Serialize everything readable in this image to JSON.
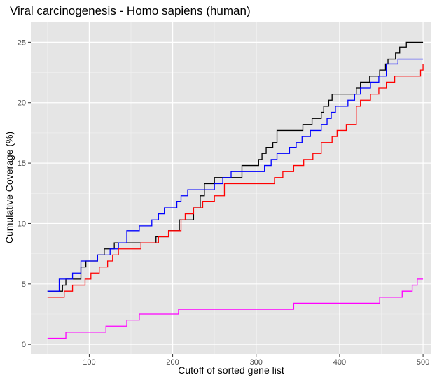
{
  "chart_data": {
    "type": "line",
    "title": "Viral carcinogenesis - Homo sapiens (human)",
    "xlabel": "Cutoff of sorted gene list",
    "ylabel": "Cumulative Coverage (%)",
    "xlim": [
      30,
      510
    ],
    "ylim": [
      -0.8,
      26.7
    ],
    "xticks": [
      100,
      200,
      300,
      400,
      500
    ],
    "yticks": [
      0,
      5,
      10,
      15,
      20,
      25
    ],
    "xtick_labels": [
      "100",
      "200",
      "300",
      "400",
      "500"
    ],
    "ytick_labels": [
      "0",
      "5",
      "10",
      "15",
      "20",
      "25"
    ],
    "grid": true,
    "legend": "none",
    "line_shape": "step",
    "series": [
      {
        "color": "#000000",
        "x": [
          50,
          65,
          68,
          72,
          78,
          90,
          96,
          110,
          118,
          130,
          145,
          160,
          180,
          195,
          208,
          215,
          225,
          233,
          238,
          250,
          265,
          283,
          300,
          303,
          307,
          312,
          320,
          325,
          340,
          350,
          356,
          367,
          376,
          378,
          381,
          387,
          391,
          397,
          412,
          420,
          425,
          436,
          448,
          455,
          458,
          467,
          472,
          480,
          500
        ],
        "y": [
          4.4,
          4.4,
          4.9,
          5.4,
          5.4,
          6.4,
          6.9,
          7.4,
          7.9,
          8.4,
          8.4,
          8.4,
          8.9,
          9.4,
          10.3,
          10.3,
          11.3,
          12.3,
          13.3,
          13.8,
          13.8,
          14.8,
          14.8,
          15.3,
          15.8,
          16.3,
          16.7,
          17.7,
          17.7,
          17.7,
          18.2,
          18.7,
          18.7,
          19.2,
          19.7,
          20.2,
          20.7,
          20.7,
          20.7,
          21.2,
          21.7,
          22.2,
          22.7,
          23.2,
          23.6,
          24.1,
          24.6,
          25.0,
          25.0
        ]
      },
      {
        "color": "#0000ff",
        "x": [
          50,
          64,
          80,
          90,
          100,
          110,
          125,
          135,
          145,
          160,
          175,
          183,
          190,
          205,
          210,
          218,
          225,
          240,
          250,
          260,
          270,
          300,
          310,
          318,
          325,
          333,
          340,
          348,
          355,
          365,
          378,
          385,
          390,
          395,
          410,
          418,
          425,
          437,
          447,
          456,
          470,
          476,
          500
        ],
        "y": [
          4.4,
          5.4,
          5.9,
          6.9,
          6.9,
          7.4,
          7.9,
          8.4,
          9.4,
          9.8,
          10.3,
          10.8,
          11.3,
          11.8,
          12.3,
          12.8,
          12.8,
          12.8,
          13.3,
          13.8,
          14.3,
          14.3,
          14.8,
          15.3,
          15.8,
          15.8,
          16.3,
          16.7,
          17.2,
          17.7,
          18.2,
          18.7,
          19.2,
          19.7,
          20.2,
          20.7,
          21.2,
          21.7,
          22.2,
          23.2,
          23.6,
          23.6,
          23.6
        ]
      },
      {
        "color": "#ff0000",
        "x": [
          50,
          60,
          70,
          80,
          95,
          102,
          112,
          122,
          128,
          135,
          150,
          162,
          170,
          183,
          195,
          210,
          215,
          225,
          236,
          250,
          262,
          300,
          322,
          332,
          345,
          357,
          368,
          378,
          384,
          391,
          397,
          400,
          408,
          420,
          425,
          437,
          447,
          456,
          466,
          480,
          491,
          497,
          500
        ],
        "y": [
          3.9,
          3.9,
          4.4,
          4.9,
          5.4,
          5.9,
          6.4,
          6.9,
          7.4,
          7.9,
          7.9,
          8.4,
          8.4,
          8.9,
          9.4,
          10.3,
          10.8,
          11.3,
          11.8,
          12.3,
          13.3,
          13.3,
          13.8,
          14.3,
          14.8,
          15.3,
          15.8,
          16.7,
          16.7,
          17.2,
          17.7,
          17.7,
          18.2,
          19.7,
          20.2,
          20.7,
          21.2,
          21.7,
          22.2,
          22.2,
          22.2,
          22.7,
          23.2
        ]
      },
      {
        "color": "#ff00ff",
        "x": [
          50,
          67,
          72,
          120,
          135,
          145,
          155,
          160,
          200,
          207,
          340,
          345,
          440,
          448,
          475,
          487,
          493,
          500
        ],
        "y": [
          0.5,
          0.5,
          1.0,
          1.5,
          1.5,
          2.0,
          2.0,
          2.5,
          2.5,
          2.9,
          2.9,
          3.4,
          3.4,
          3.9,
          4.4,
          4.9,
          5.4,
          5.4
        ]
      }
    ]
  }
}
